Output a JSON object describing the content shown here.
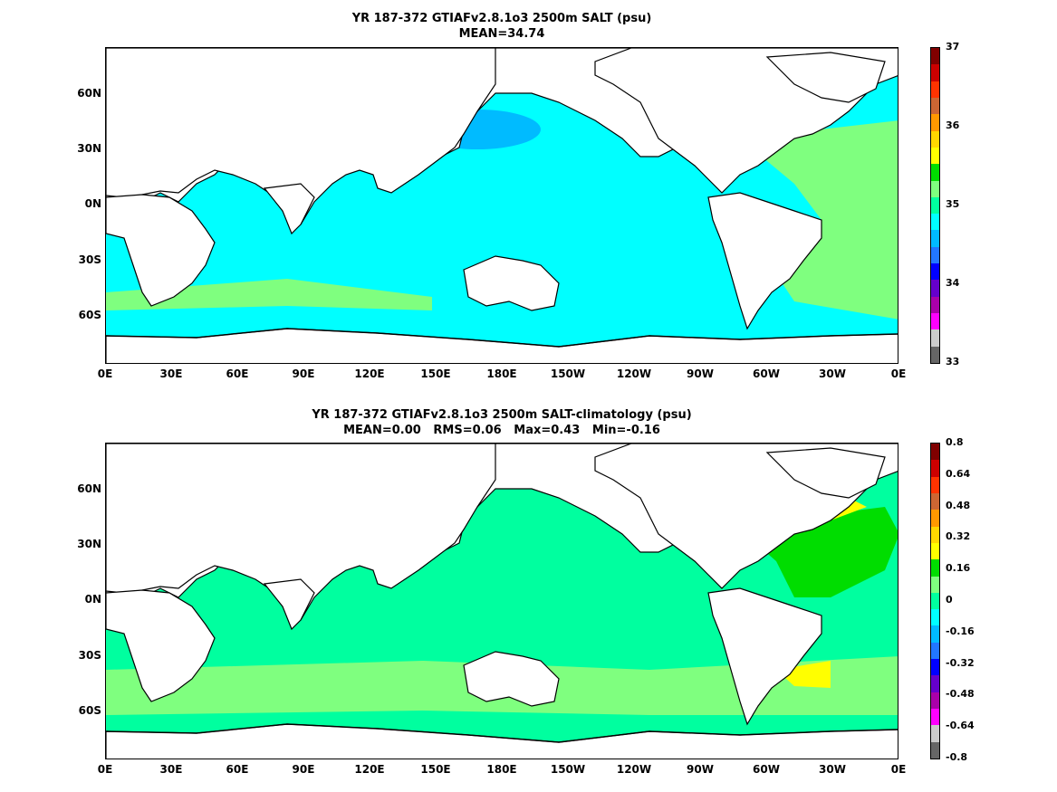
{
  "panels": [
    {
      "title": "YR 187-372 GTIAFv2.8.1o3 2500m SALT (psu)",
      "subtitle": "MEAN=34.74",
      "ocean_color": "#00ffff",
      "colorbar": {
        "labels": [
          "37",
          "36",
          "35",
          "34",
          "33"
        ],
        "colors": [
          "#800000",
          "#cc0000",
          "#ff3300",
          "#cc6633",
          "#ff9900",
          "#ffd700",
          "#ffff00",
          "#00dd00",
          "#7fff7f",
          "#00ff9f",
          "#00ffff",
          "#00bbff",
          "#2277ff",
          "#0000ff",
          "#6600cc",
          "#aa00aa",
          "#ff00ff",
          "#cccccc",
          "#666666"
        ]
      }
    },
    {
      "title": "YR 187-372 GTIAFv2.8.1o3 2500m SALT-climatology (psu)",
      "subtitle": "MEAN=0.00   RMS=0.06   Max=0.43   Min=-0.16",
      "ocean_color": "#00ff9f",
      "colorbar": {
        "labels": [
          "0.8",
          "0.64",
          "0.48",
          "0.32",
          "0.16",
          "0",
          "-0.16",
          "-0.32",
          "-0.48",
          "-0.64",
          "-0.8"
        ],
        "colors": [
          "#800000",
          "#cc0000",
          "#ff3300",
          "#cc6633",
          "#ff9900",
          "#ffd700",
          "#ffff00",
          "#00dd00",
          "#7fff7f",
          "#00ff9f",
          "#00ffff",
          "#00bbff",
          "#2277ff",
          "#0000ff",
          "#6600cc",
          "#aa00aa",
          "#ff00ff",
          "#cccccc",
          "#666666"
        ]
      }
    }
  ],
  "axes": {
    "y_ticks": [
      "60N",
      "30N",
      "0N",
      "30S",
      "60S"
    ],
    "x_ticks": [
      "0E",
      "30E",
      "60E",
      "90E",
      "120E",
      "150E",
      "180E",
      "150W",
      "120W",
      "90W",
      "60W",
      "30W",
      "0E"
    ]
  },
  "colors": {
    "land": "#ffffff",
    "coast": "#000000",
    "green_high": "#7fff7f",
    "blue_low": "#00bbff",
    "orange": "#ff9900",
    "yellow": "#ffff00",
    "bright_green": "#00dd00"
  }
}
